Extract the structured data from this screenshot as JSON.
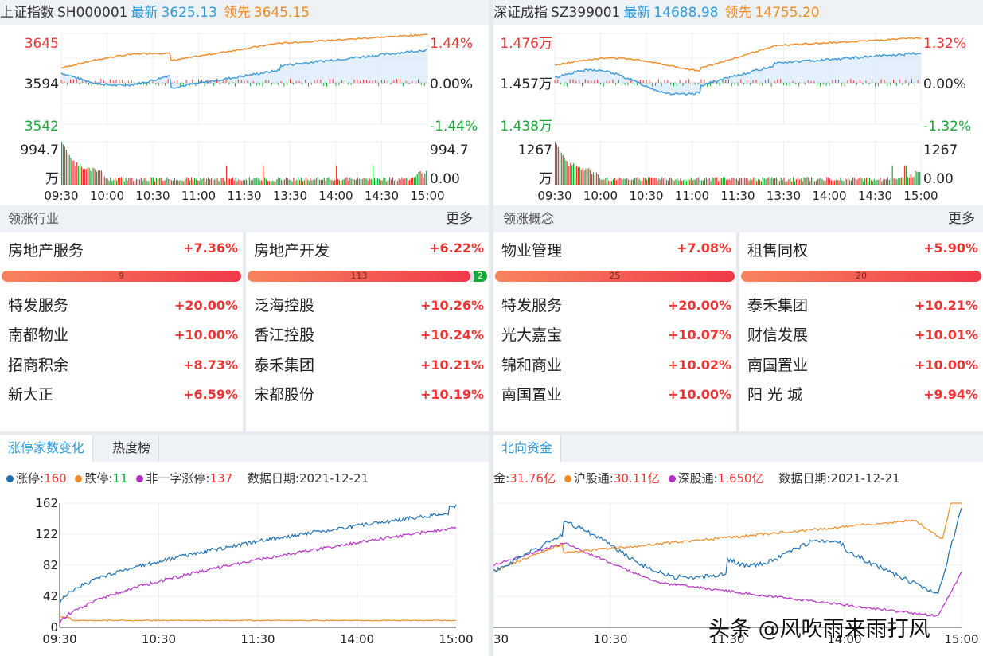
{
  "index_left": {
    "name": "上证指数",
    "code": "SH000001",
    "latest_label": "最新",
    "latest": "3625.13",
    "lead_label": "领先",
    "lead": "3645.15",
    "y_top": "3645",
    "y_mid": "3594",
    "y_bot": "3542",
    "pct_top": "1.44%",
    "pct_mid": "0.00%",
    "pct_bot": "-1.44%",
    "vol_top": "994.7",
    "vol_unit": "万",
    "vol_top_r": "994.7",
    "vol_zero_r": "0.00",
    "times": [
      "09:30",
      "10:00",
      "10:30",
      "11:00",
      "11:30",
      "13:30",
      "14:00",
      "14:30",
      "15:00"
    ]
  },
  "index_right": {
    "name": "深证成指",
    "code": "SZ399001",
    "latest_label": "最新",
    "latest": "14688.98",
    "lead_label": "领先",
    "lead": "14755.20",
    "y_top": "1.476万",
    "y_mid": "1.457万",
    "y_bot": "1.438万",
    "pct_top": "1.32%",
    "pct_mid": "0.00%",
    "pct_bot": "-1.32%",
    "vol_top": "1267",
    "vol_unit": "万",
    "vol_top_r": "1267",
    "vol_zero_r": "0.00",
    "times": [
      "09:30",
      "10:00",
      "10:30",
      "11:00",
      "11:30",
      "13:30",
      "14:00",
      "14:30",
      "15:00"
    ]
  },
  "industry": {
    "title": "领涨行业",
    "more": "更多",
    "cards": [
      {
        "name": "房地产服务",
        "pct": "+7.36%",
        "bar_text": "9",
        "bar_extra": "",
        "stocks": [
          {
            "name": "特发服务",
            "pct": "+20.00%"
          },
          {
            "name": "南都物业",
            "pct": "+10.00%"
          },
          {
            "name": "招商积余",
            "pct": "+8.73%"
          },
          {
            "name": "新大正",
            "pct": "+6.59%"
          }
        ]
      },
      {
        "name": "房地产开发",
        "pct": "+6.22%",
        "bar_text": "113",
        "bar_extra": "2",
        "stocks": [
          {
            "name": "泛海控股",
            "pct": "+10.26%"
          },
          {
            "name": "香江控股",
            "pct": "+10.24%"
          },
          {
            "name": "泰禾集团",
            "pct": "+10.21%"
          },
          {
            "name": "宋都股份",
            "pct": "+10.19%"
          }
        ]
      }
    ]
  },
  "concept": {
    "title": "领涨概念",
    "more": "更多",
    "cards": [
      {
        "name": "物业管理",
        "pct": "+7.08%",
        "bar_text": "25",
        "stocks": [
          {
            "name": "特发服务",
            "pct": "+20.00%"
          },
          {
            "name": "光大嘉宝",
            "pct": "+10.07%"
          },
          {
            "name": "锦和商业",
            "pct": "+10.02%"
          },
          {
            "name": "南国置业",
            "pct": "+10.00%"
          }
        ]
      },
      {
        "name": "租售同权",
        "pct": "+5.90%",
        "bar_text": "20",
        "stocks": [
          {
            "name": "泰禾集团",
            "pct": "+10.21%"
          },
          {
            "name": "财信发展",
            "pct": "+10.01%"
          },
          {
            "name": "南国置业",
            "pct": "+10.00%"
          },
          {
            "name": "阳 光 城",
            "pct": "+9.94%"
          }
        ]
      }
    ]
  },
  "limit_panel": {
    "tabs": [
      "涨停家数变化",
      "热度榜"
    ],
    "legend": {
      "up_label": "涨停:",
      "up": "160",
      "down_label": "跌停:",
      "down": "11",
      "non_label": "非一字涨停:",
      "non": "137",
      "date_label": "数据日期:",
      "date": "2021-12-21"
    },
    "y_ticks": [
      "162",
      "122",
      "82",
      "42",
      "0"
    ],
    "x_ticks": [
      "09:30",
      "10:30",
      "11:30",
      "14:00",
      "15:00"
    ]
  },
  "north_panel": {
    "tabs": [
      "北向资金"
    ],
    "legend": {
      "total_label": "金:",
      "total": "31.76亿",
      "sh_label": "沪股通:",
      "sh": "30.11亿",
      "sz_label": "深股通:",
      "sz": "1.650亿",
      "date_label": "数据日期:",
      "date": "2021-12-21"
    },
    "x_ticks": [
      "30",
      "10:30",
      "11:30",
      "14:00",
      "15:00"
    ]
  },
  "watermark": "头条 @风吹雨来雨打风",
  "colors": {
    "up": "#ee3333",
    "down": "#17a835",
    "latest": "#2f9bd6",
    "lead": "#f08a24",
    "purple": "#b62fc4",
    "blue_line": "#1f6fb0"
  }
}
